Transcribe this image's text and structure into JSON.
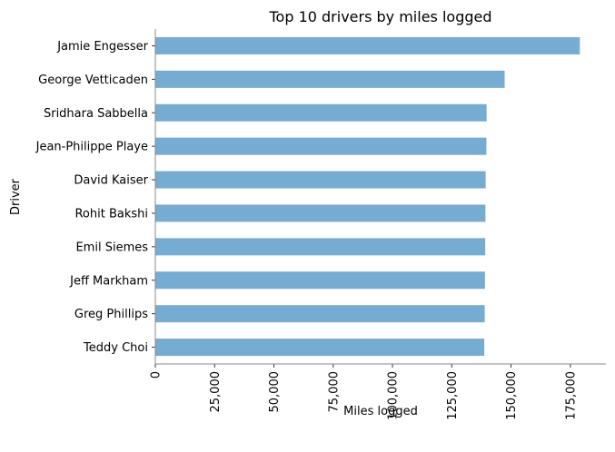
{
  "chart_data": {
    "type": "bar",
    "orientation": "horizontal",
    "title": "Top 10 drivers by miles logged",
    "xlabel": "Miles logged",
    "ylabel": "Driver",
    "categories": [
      "Jamie Engesser",
      "George Vetticaden",
      "Sridhara Sabbella",
      "Jean-Philippe Playe",
      "David Kaiser",
      "Rohit Bakshi",
      "Emil Siemes",
      "Jeff Markham",
      "Greg Phillips",
      "Teddy Choi"
    ],
    "values": [
      179000,
      147300,
      139700,
      139600,
      139300,
      139200,
      139100,
      139000,
      138900,
      138700
    ],
    "xlim": [
      0,
      190000
    ],
    "xticks": [
      0,
      25000,
      50000,
      75000,
      100000,
      125000,
      150000,
      175000
    ],
    "xtick_labels": [
      "0",
      "25,000",
      "50,000",
      "75,000",
      "100,000",
      "125,000",
      "150,000",
      "175,000"
    ],
    "grid": false,
    "bar_color": "#76acd1"
  }
}
